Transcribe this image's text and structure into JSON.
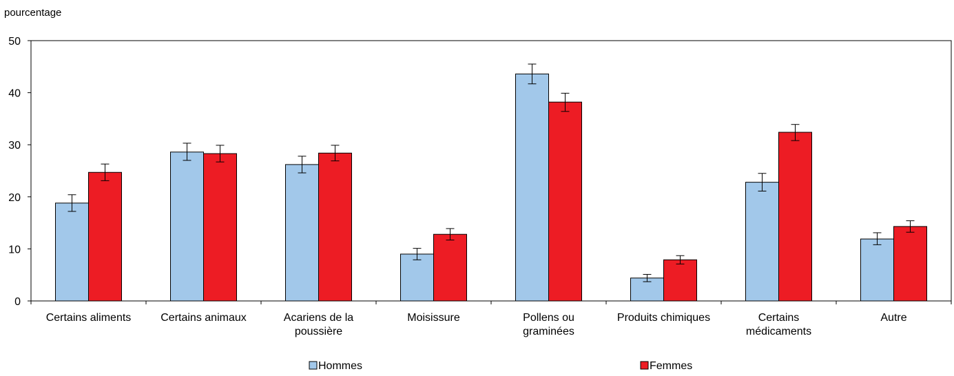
{
  "chart_data": {
    "type": "bar",
    "ylabel": "pourcentage",
    "ylim": [
      0,
      50
    ],
    "yticks": [
      0,
      10,
      20,
      30,
      40,
      50
    ],
    "categories": [
      [
        "Certains aliments"
      ],
      [
        "Certains animaux"
      ],
      [
        "Acariens de la",
        "poussière"
      ],
      [
        "Moisissure"
      ],
      [
        "Pollens ou",
        "graminées"
      ],
      [
        "Produits chimiques"
      ],
      [
        "Certains",
        "médicaments"
      ],
      [
        "Autre"
      ]
    ],
    "series": [
      {
        "name": "Hommes",
        "color": "#a2c8ea",
        "values": [
          18.8,
          28.6,
          26.2,
          9.0,
          43.6,
          4.4,
          22.8,
          11.9
        ],
        "error_low": [
          17.2,
          27.0,
          24.6,
          7.9,
          41.7,
          3.7,
          21.1,
          10.8
        ],
        "error_high": [
          20.4,
          30.3,
          27.8,
          10.1,
          45.5,
          5.1,
          24.5,
          13.1
        ]
      },
      {
        "name": "Femmes",
        "color": "#ed1c24",
        "values": [
          24.7,
          28.3,
          28.4,
          12.8,
          38.2,
          7.9,
          32.4,
          14.3
        ],
        "error_low": [
          23.1,
          26.7,
          26.9,
          11.7,
          36.4,
          7.1,
          30.8,
          13.2
        ],
        "error_high": [
          26.3,
          29.9,
          29.9,
          13.9,
          39.9,
          8.7,
          33.9,
          15.4
        ]
      }
    ],
    "grid": false,
    "legend": "bottom"
  }
}
